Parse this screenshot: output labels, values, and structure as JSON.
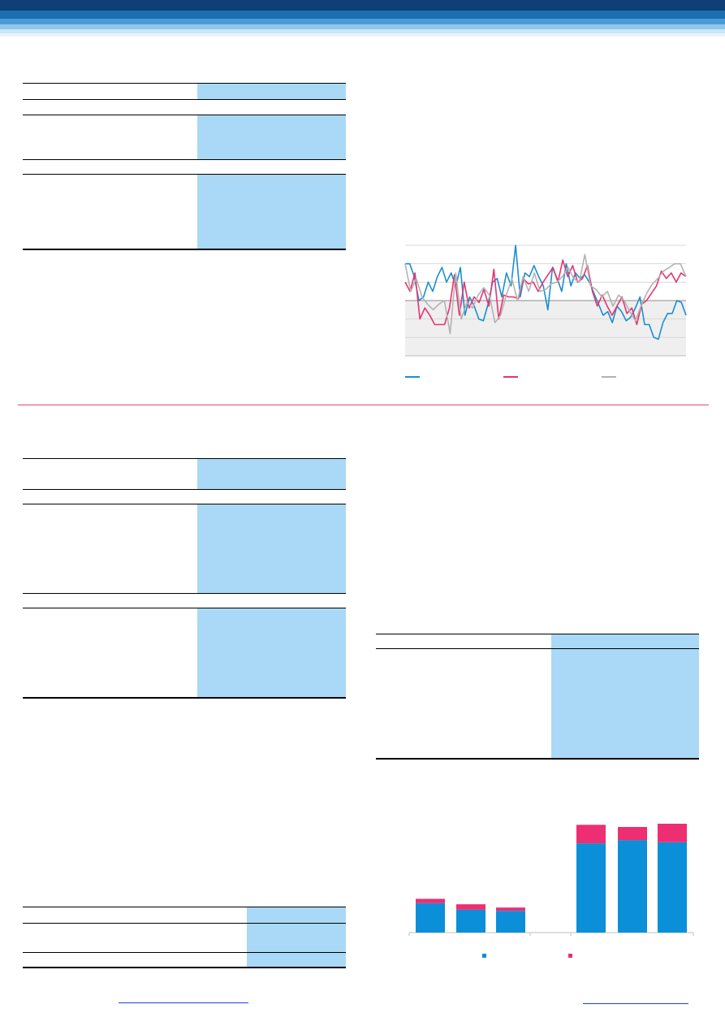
{
  "header": {
    "band_colors": [
      "#0f3f75",
      "#1b6fb0",
      "#4a9bd5",
      "#8ec6ea",
      "#c9e5f6",
      "#e8f4fb"
    ]
  },
  "accent_colors": {
    "table_shade": "#a9d9f6",
    "divider": "#e0457e",
    "link": "#1f3fd6"
  },
  "line_chart": {
    "type": "line",
    "title": "",
    "xlabel": "",
    "ylabel": "",
    "ylim": [
      -3,
      3
    ],
    "zero_line": 0,
    "shaded_region": "below zero",
    "legend_placement": "bottom",
    "series": [
      {
        "color": "#1a8fd0",
        "values": [
          2.0,
          2.0,
          1.3,
          0.0,
          0.2,
          1.0,
          0.5,
          1.3,
          1.8,
          1.0,
          1.5,
          0.8,
          1.8,
          -0.8,
          0.2,
          -0.3,
          -1.0,
          -1.1,
          -0.2,
          1.0,
          1.2,
          0.2,
          1.5,
          0.8,
          3.0,
          0.2,
          1.5,
          1.3,
          1.9,
          1.3,
          0.8,
          -0.5,
          1.8,
          1.2,
          0.5,
          2.0,
          0.8,
          1.5,
          1.2,
          1.4,
          1.0,
          0.4,
          -0.2,
          -0.8,
          -0.6,
          -1.2,
          -0.3,
          -0.6,
          -1.1,
          -0.9,
          -0.4,
          0.2,
          -1.3,
          -1.3,
          -2.0,
          -2.1,
          -1.2,
          -0.7,
          -0.7,
          0.0,
          -0.1,
          -0.8
        ]
      },
      {
        "color": "#e8336f",
        "values": [
          1.0,
          0.5,
          1.5,
          -1.0,
          -0.4,
          -0.8,
          -1.3,
          -1.3,
          -1.3,
          -0.4,
          1.4,
          -0.8,
          1.0,
          -0.4,
          0.2,
          -0.1,
          0.6,
          -0.3,
          1.7,
          -1.0,
          0.3,
          0.2,
          0.2,
          0.1,
          1.2,
          0.9,
          1.0,
          0.5,
          1.0,
          1.4,
          1.8,
          1.0,
          2.2,
          1.3,
          1.9,
          1.0,
          1.2,
          1.9,
          0.5,
          -0.3,
          0.3,
          -0.3,
          -0.8,
          -0.3,
          0.2,
          -0.7,
          -0.4,
          -1.3,
          -0.2,
          0.0,
          0.4,
          0.8,
          1.6,
          1.2,
          1.5,
          1.0,
          1.5,
          1.3
        ]
      },
      {
        "color": "#b3b3b3",
        "values": [
          2.0,
          0.5,
          1.2,
          0.2,
          -0.2,
          -0.5,
          -0.2,
          0.0,
          -1.8,
          1.5,
          -1.0,
          -0.1,
          -0.4,
          0.3,
          0.7,
          0.3,
          -1.2,
          -0.8,
          0.3,
          1.2,
          0.0,
          1.3,
          0.5,
          1.5,
          0.5,
          0.6,
          0.9,
          1.0,
          1.3,
          1.8,
          1.2,
          1.0,
          2.5,
          0.8,
          0.6,
          0.2,
          0.5,
          -0.3,
          0.3,
          0.0,
          -0.6,
          -1.1,
          -0.3,
          0.4,
          0.9,
          1.2,
          1.6,
          1.8,
          2.0,
          2.0,
          1.3
        ]
      }
    ]
  },
  "bar_chart": {
    "type": "bar",
    "title": "",
    "xlabel": "",
    "ylabel": "",
    "ylim": [
      0,
      100
    ],
    "legend_placement": "bottom",
    "categories": [
      "",
      "",
      "",
      "",
      "",
      ""
    ],
    "groups": [
      [
        0,
        1,
        2
      ],
      [
        3,
        4,
        5
      ]
    ],
    "series": [
      {
        "color": "#0b8fd8",
        "values": [
          27,
          21,
          20,
          82,
          85,
          83
        ]
      },
      {
        "color": "#ed2e72",
        "values": [
          4,
          5,
          3,
          17,
          12,
          17
        ]
      }
    ]
  }
}
